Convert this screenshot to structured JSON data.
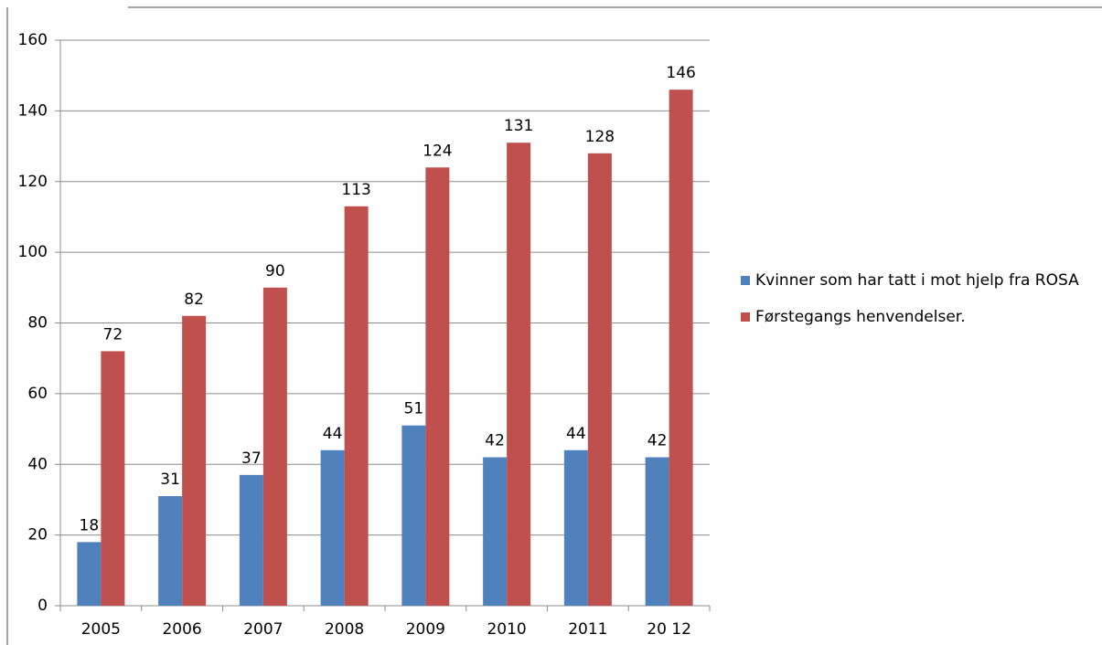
{
  "chart_data": {
    "type": "bar",
    "categories": [
      "2005",
      "2006",
      "2007",
      "2008",
      "2009",
      "2010",
      "2011",
      "20 12"
    ],
    "series": [
      {
        "name": "Kvinner som har tatt i mot hjelp fra ROSA",
        "color": "#4f81bd",
        "values": [
          18,
          31,
          37,
          44,
          51,
          42,
          44,
          42
        ]
      },
      {
        "name": "Førstegangs henvendelser.",
        "color": "#c0504d",
        "values": [
          72,
          82,
          90,
          113,
          124,
          131,
          128,
          146
        ]
      }
    ],
    "ylim": [
      0,
      160
    ],
    "yticks": [
      0,
      20,
      40,
      60,
      80,
      100,
      120,
      140,
      160
    ],
    "grid": true,
    "legend": "right"
  }
}
